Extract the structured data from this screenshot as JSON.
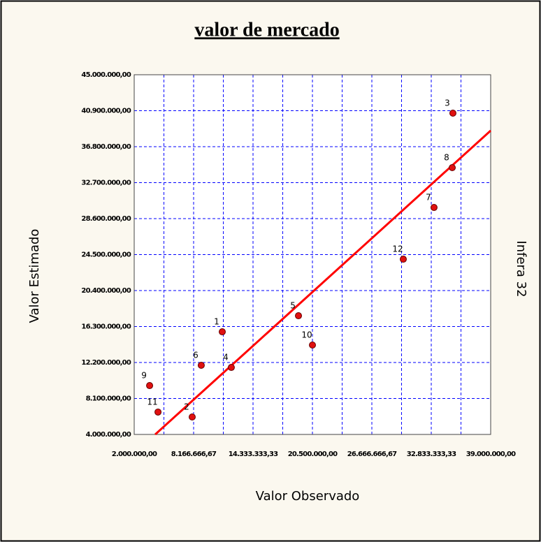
{
  "chart_data": {
    "type": "scatter",
    "title": "valor de mercado",
    "x_label": "Valor Observado",
    "y_label": "Valor Estimado",
    "right_label": "Infera 32",
    "xlim": [
      2000000,
      39000000
    ],
    "ylim": [
      4000000,
      45000000
    ],
    "xticks": [
      {
        "value": 2000000,
        "label": "2.000.000,00"
      },
      {
        "value": 8166666.67,
        "label": "8.166.666,67"
      },
      {
        "value": 14333333.33,
        "label": "14.333.333,33"
      },
      {
        "value": 20500000,
        "label": "20.500.000,00"
      },
      {
        "value": 26666666.67,
        "label": "26.666.666,67"
      },
      {
        "value": 32833333.33,
        "label": "32.833.333,33"
      },
      {
        "value": 39000000,
        "label": "39.000.000,00"
      }
    ],
    "xgrid": [
      5083333.33,
      11250000,
      17416666.67,
      23583333.33,
      29750000,
      35916666.67
    ],
    "yticks": [
      {
        "value": 4000000,
        "label": "4.000.000,00"
      },
      {
        "value": 8100000,
        "label": "8.100.000,00"
      },
      {
        "value": 12200000,
        "label": "12.200.000,00"
      },
      {
        "value": 16300000,
        "label": "16.300.000,00"
      },
      {
        "value": 20400000,
        "label": "20.400.000,00"
      },
      {
        "value": 24500000,
        "label": "24.500.000,00"
      },
      {
        "value": 28600000,
        "label": "28.600.000,00"
      },
      {
        "value": 32700000,
        "label": "32.700.000,00"
      },
      {
        "value": 36800000,
        "label": "36.800.000,00"
      },
      {
        "value": 40900000,
        "label": "40.900.000,00"
      },
      {
        "value": 45000000,
        "label": "45.000.000,00"
      }
    ],
    "grid": true,
    "grid_color": "#0000ff",
    "series": [
      {
        "color": "#e01010",
        "labels": [
          "1",
          "2",
          "3",
          "4",
          "5",
          "6",
          "7",
          "8",
          "9",
          "10",
          "11",
          "12"
        ],
        "x": [
          11140000,
          8020000,
          35080000,
          12080000,
          19050000,
          8960000,
          33120000,
          35010000,
          3600000,
          20500000,
          4470000,
          29930000
        ],
        "values": [
          15700000,
          5990000,
          40620000,
          11640000,
          17530000,
          11880000,
          29870000,
          34410000,
          9570000,
          14190000,
          6550000,
          23980000
        ]
      }
    ],
    "fit_line": {
      "color": "#ff0000",
      "x": [
        4180000,
        39000000
      ],
      "values": [
        4000000,
        38630000
      ]
    }
  }
}
